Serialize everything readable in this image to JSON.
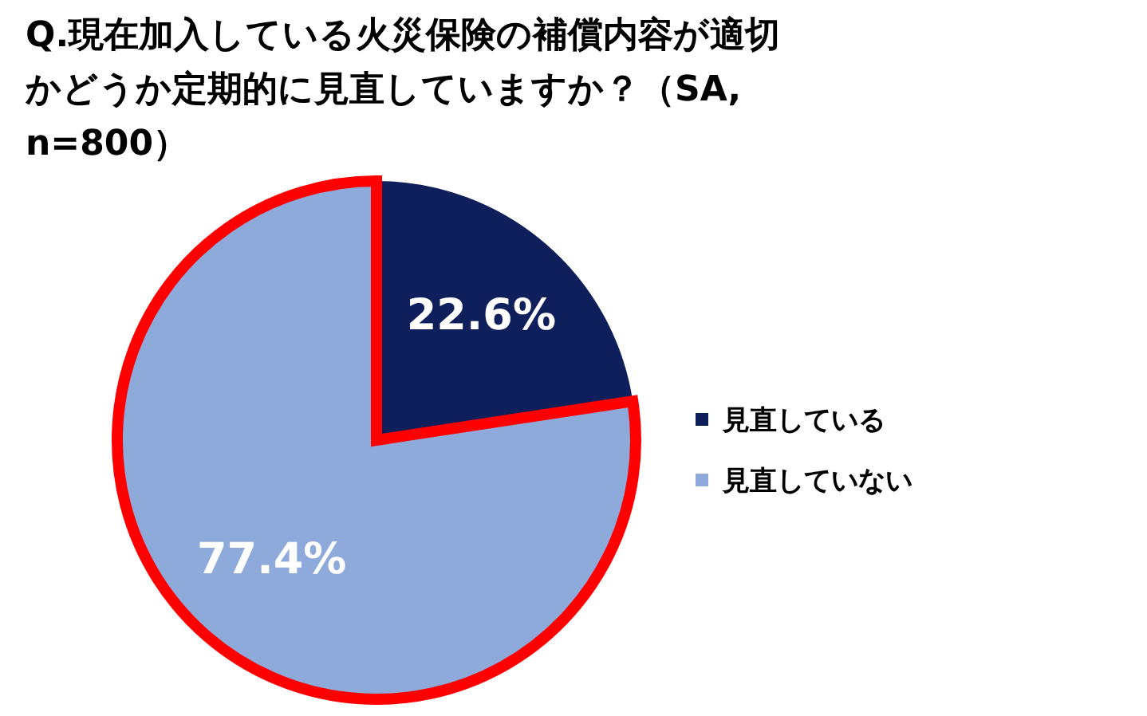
{
  "chart_data": {
    "type": "pie",
    "title": "Q.現在加入している火災保険の補償内容が適切かどうか定期的に見直していますか？（SA, n=800）",
    "categories": [
      "見直している",
      "見直していない"
    ],
    "values": [
      22.6,
      77.4
    ],
    "colors": [
      "#0e1f5b",
      "#8eaadb"
    ],
    "value_labels": [
      "22.6%",
      "77.4%"
    ],
    "legend": "right"
  }
}
